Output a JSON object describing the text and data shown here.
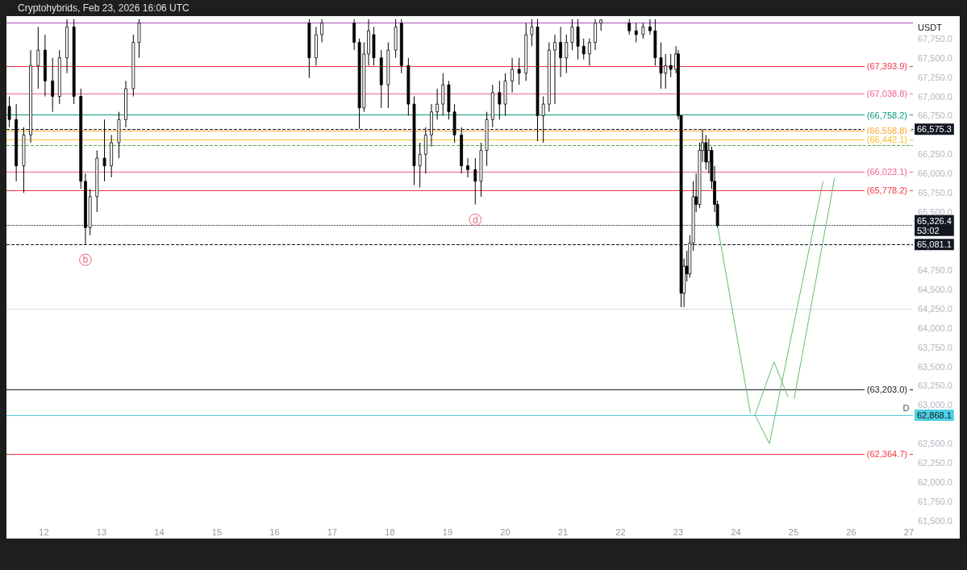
{
  "chart_data": {
    "type": "candlestick",
    "title": "Cryptohybrids, Feb 23, 2026 16:06 UTC",
    "color": "#000000",
    "x": [
      11.4,
      11.52,
      11.65,
      11.77,
      11.9,
      12.02,
      12.15,
      12.27,
      12.4,
      12.52,
      12.64,
      12.72,
      12.8,
      12.92,
      13.05,
      13.17,
      13.3,
      13.42,
      13.55,
      13.65,
      16.6,
      16.72,
      16.82,
      17.38,
      17.47,
      17.55,
      17.63,
      17.72,
      17.85,
      17.97,
      18.1,
      18.2,
      18.32,
      18.42,
      18.52,
      18.62,
      18.72,
      18.82,
      18.92,
      19.02,
      19.12,
      19.24,
      19.35,
      19.48,
      19.58,
      19.68,
      19.78,
      19.9,
      20.0,
      20.12,
      20.24,
      20.36,
      20.46,
      20.56,
      20.66,
      20.76,
      20.86,
      20.96,
      21.06,
      21.16,
      21.26,
      21.36,
      21.46,
      21.56,
      21.66,
      22.15,
      22.27,
      22.39,
      22.51,
      22.6,
      22.7,
      22.78,
      22.87,
      22.96,
      23.0,
      23.05,
      23.1,
      23.15,
      23.2,
      23.26,
      23.31,
      23.37,
      23.42,
      23.48,
      23.53,
      23.58,
      23.63,
      23.68
    ],
    "ohlc": [
      [
        66870,
        67000,
        66600,
        66700
      ],
      [
        66700,
        66900,
        65900,
        66100
      ],
      [
        66100,
        66600,
        65750,
        66500
      ],
      [
        66500,
        67600,
        66400,
        67400
      ],
      [
        67400,
        67900,
        67100,
        67600
      ],
      [
        67600,
        67800,
        67000,
        67200
      ],
      [
        67200,
        67500,
        66800,
        67000
      ],
      [
        67000,
        67600,
        66900,
        67500
      ],
      [
        67500,
        68000,
        67300,
        67900
      ],
      [
        67900,
        68000,
        66900,
        67000
      ],
      [
        67000,
        67100,
        65800,
        65900
      ],
      [
        65900,
        66000,
        65081,
        65300
      ],
      [
        65300,
        65800,
        65200,
        65700
      ],
      [
        65700,
        66300,
        65500,
        66200
      ],
      [
        66200,
        66700,
        65900,
        66100
      ],
      [
        66100,
        66500,
        65950,
        66400
      ],
      [
        66400,
        66800,
        66200,
        66700
      ],
      [
        66700,
        67200,
        66600,
        67100
      ],
      [
        67100,
        67800,
        67000,
        67700
      ],
      [
        67700,
        68000,
        67500,
        67950
      ],
      [
        67950,
        68000,
        67240,
        67500
      ],
      [
        67500,
        67900,
        67400,
        67800
      ],
      [
        67800,
        68000,
        67700,
        67950
      ],
      [
        67950,
        68000,
        67600,
        67700
      ],
      [
        67700,
        67750,
        66580,
        66850
      ],
      [
        66850,
        67700,
        66800,
        67550
      ],
      [
        67550,
        68000,
        67400,
        67850
      ],
      [
        67800,
        67900,
        67400,
        67500
      ],
      [
        67500,
        67600,
        66850,
        67150
      ],
      [
        67150,
        67700,
        66850,
        67600
      ],
      [
        67600,
        68000,
        67500,
        67900
      ],
      [
        67950,
        68000,
        67300,
        67400
      ],
      [
        67400,
        67500,
        66750,
        66900
      ],
      [
        66900,
        67000,
        65850,
        66100
      ],
      [
        66100,
        66400,
        65820,
        66250
      ],
      [
        66250,
        66600,
        66000,
        66500
      ],
      [
        66500,
        66900,
        66350,
        66800
      ],
      [
        66800,
        67100,
        66700,
        66900
      ],
      [
        66900,
        67300,
        66750,
        67150
      ],
      [
        67150,
        67200,
        66700,
        66800
      ],
      [
        66800,
        66900,
        66400,
        66500
      ],
      [
        66500,
        66600,
        66000,
        66100
      ],
      [
        66100,
        66200,
        65950,
        66050
      ],
      [
        66050,
        66200,
        65600,
        65900
      ],
      [
        65900,
        66400,
        65700,
        66300
      ],
      [
        66300,
        66800,
        66100,
        66700
      ],
      [
        66700,
        67150,
        66600,
        67050
      ],
      [
        67050,
        67200,
        66700,
        66900
      ],
      [
        66900,
        67300,
        66750,
        67200
      ],
      [
        67200,
        67500,
        67050,
        67350
      ],
      [
        67350,
        67500,
        67150,
        67300
      ],
      [
        67300,
        67950,
        67200,
        67800
      ],
      [
        67800,
        68000,
        67650,
        67900
      ],
      [
        67900,
        68000,
        66420,
        66750
      ],
      [
        66750,
        67000,
        66400,
        66900
      ],
      [
        66900,
        67700,
        66800,
        67600
      ],
      [
        67600,
        67800,
        66900,
        67700
      ],
      [
        67700,
        67900,
        67250,
        67500
      ],
      [
        67500,
        67800,
        67300,
        67700
      ],
      [
        67700,
        68000,
        67600,
        67900
      ],
      [
        67900,
        68000,
        67480,
        67650
      ],
      [
        67650,
        67750,
        67480,
        67550
      ],
      [
        67550,
        67750,
        67400,
        67700
      ],
      [
        67700,
        68000,
        67600,
        67950
      ],
      [
        67950,
        68000,
        67850,
        67990
      ],
      [
        67950,
        68000,
        67800,
        67850
      ],
      [
        67850,
        67950,
        67700,
        67800
      ],
      [
        67800,
        67950,
        67750,
        67900
      ],
      [
        67900,
        68000,
        67800,
        67850
      ],
      [
        67850,
        68000,
        67400,
        67500
      ],
      [
        67500,
        67700,
        67100,
        67300
      ],
      [
        67300,
        67550,
        67100,
        67400
      ],
      [
        67400,
        67550,
        67250,
        67350
      ],
      [
        67350,
        67650,
        67300,
        67550
      ],
      [
        67550,
        67600,
        66700,
        66750
      ],
      [
        66750,
        66750,
        64270,
        64450
      ],
      [
        64450,
        64900,
        64270,
        64800
      ],
      [
        64800,
        65000,
        64600,
        64700
      ],
      [
        64700,
        65200,
        64650,
        65100
      ],
      [
        65100,
        65900,
        65000,
        65700
      ],
      [
        65700,
        66000,
        65500,
        65600
      ],
      [
        65600,
        66400,
        65550,
        66300
      ],
      [
        66300,
        66575,
        66150,
        66400
      ],
      [
        66400,
        66500,
        66050,
        66150
      ],
      [
        66150,
        66450,
        66000,
        66300
      ],
      [
        66300,
        66350,
        65800,
        65900
      ],
      [
        65900,
        66100,
        65500,
        65600
      ],
      [
        65600,
        65650,
        65300,
        65326.4
      ]
    ],
    "series": [
      {
        "type": "line",
        "color": "#66bb6a",
        "x": [
          23.68,
          24.25
        ],
        "values": [
          65330,
          62900
        ]
      },
      {
        "type": "line",
        "color": "#66bb6a",
        "x": [
          24.33,
          24.66,
          24.9
        ],
        "values": [
          62870,
          63560,
          63110
        ]
      },
      {
        "type": "line",
        "color": "#66bb6a",
        "x": [
          24.33,
          24.58,
          25.51
        ],
        "values": [
          62870,
          62500,
          65900
        ]
      },
      {
        "type": "line",
        "color": "#66bb6a",
        "x": [
          25.01,
          25.71
        ],
        "values": [
          63080,
          65940
        ]
      }
    ],
    "xlim": [
      11.35,
      27.07
    ],
    "xticks": [
      12,
      13,
      14,
      15,
      16,
      17,
      18,
      19,
      20,
      21,
      22,
      23,
      24,
      25,
      26,
      27
    ],
    "ylim": [
      61500,
      68040
    ],
    "yticks": [
      {
        "value": 61500,
        "label": "61,500.0"
      },
      {
        "value": 61750,
        "label": "61,750.0"
      },
      {
        "value": 62000,
        "label": "62,000.0"
      },
      {
        "value": 62250,
        "label": "62,250.0"
      },
      {
        "value": 62500,
        "label": "62,500.0"
      },
      {
        "value": 63000,
        "label": "63,000.0"
      },
      {
        "value": 63250,
        "label": "63,250.0"
      },
      {
        "value": 63500,
        "label": "63,500.0"
      },
      {
        "value": 63750,
        "label": "63,750.0"
      },
      {
        "value": 64000,
        "label": "64,000.0"
      },
      {
        "value": 64250,
        "label": "64,250.0"
      },
      {
        "value": 64500,
        "label": "64,500.0"
      },
      {
        "value": 64750,
        "label": "64,750.0"
      },
      {
        "value": 65500,
        "label": "65,500.0"
      },
      {
        "value": 65750,
        "label": "65,750.0"
      },
      {
        "value": 66000,
        "label": "66,000.0"
      },
      {
        "value": 66250,
        "label": "66,250.0"
      },
      {
        "value": 66750,
        "label": "66,750.0"
      },
      {
        "value": 67000,
        "label": "67,000.0"
      },
      {
        "value": 67250,
        "label": "67,250.0"
      },
      {
        "value": 67500,
        "label": "67,500.0"
      },
      {
        "value": 67750,
        "label": "67,750.0"
      }
    ],
    "ref_lines": [
      {
        "axis": "y",
        "value": 67950,
        "color": "#ab47bc"
      },
      {
        "axis": "y",
        "value": 67393.9,
        "label": "(67,393.9)",
        "color": "#f23645"
      },
      {
        "axis": "y",
        "value": 67038.8,
        "label": "(67,038.8)",
        "color": "#f06292"
      },
      {
        "axis": "y",
        "value": 66758.2,
        "label": "(66,758.2)",
        "color": "#089981"
      },
      {
        "axis": "y",
        "value": 66575.3,
        "label": "66,575.3",
        "color": "#131722",
        "line_style": "dashed"
      },
      {
        "axis": "y",
        "value": 66558.8,
        "label": "(66,558.8)",
        "color": "#ffa726"
      },
      {
        "axis": "y",
        "value": 66442.1,
        "label": "(66,442.1)",
        "color": "#fbc02d"
      },
      {
        "axis": "y",
        "value": 66362,
        "color": "#4caf50",
        "line_style": "dashed"
      },
      {
        "axis": "y",
        "value": 66023.1,
        "label": "(66,023.1)",
        "color": "#f06292"
      },
      {
        "axis": "y",
        "value": 65778.2,
        "label": "(65,778.2)",
        "color": "#f23645"
      },
      {
        "axis": "y",
        "value": 65326.4,
        "label": "65,326.4\n53:02",
        "color": "#131722",
        "line_style": "dotted"
      },
      {
        "axis": "y",
        "value": 65081.1,
        "label": "65,081.1",
        "color": "#131722",
        "line_style": "dashed"
      },
      {
        "axis": "y",
        "value": 64243,
        "color": "#b2b5be",
        "line_style": "dotted"
      },
      {
        "axis": "y",
        "value": 63203,
        "label": "(63,203.0)",
        "color": "#131722"
      },
      {
        "axis": "y",
        "value": 62868.1,
        "label": "62,868.1",
        "color": "#4dd0e1",
        "line_style": "solid"
      },
      {
        "axis": "y",
        "value": 62364.7,
        "label": "(62,364.7)",
        "color": "#f23645"
      }
    ],
    "annotations": [
      "USDT",
      {
        "text": "b",
        "x": 12.72,
        "y": 65081
      },
      {
        "text": "d",
        "x": 19.48,
        "y": 65600
      },
      {
        "text": "D",
        "x": 26.95,
        "y": 62868.1
      }
    ]
  }
}
